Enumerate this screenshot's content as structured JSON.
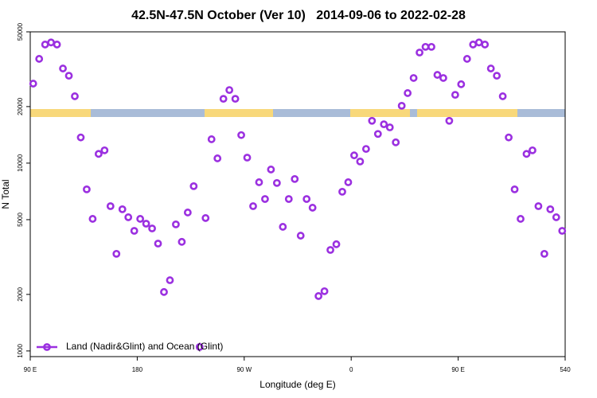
{
  "chart_data": {
    "type": "scatter",
    "title": "42.5N-47.5N October (Ver 10)   2014-09-06 to 2022-02-28",
    "x_label": "Longitude (deg E)",
    "y_label": "N Total",
    "x": [
      92.5,
      97.5,
      102.5,
      107.5,
      112.5,
      117.5,
      122.5,
      127.5,
      132.5,
      137.5,
      142.5,
      147.5,
      152.5,
      157.5,
      162.5,
      167.5,
      172.5,
      177.5,
      182.5,
      187.5,
      192.5,
      197.5,
      202.5,
      207.5,
      212.5,
      217.5,
      222.5,
      227.5,
      232.5,
      237.5,
      242.5,
      247.5,
      252.5,
      257.5,
      262.5,
      267.5,
      272.5,
      277.5,
      282.5,
      287.5,
      292.5,
      297.5,
      302.5,
      307.5,
      312.5,
      317.5,
      322.5,
      327.5,
      332.5,
      337.5,
      342.5,
      347.5,
      352.5,
      357.5,
      362.5,
      367.5,
      372.5,
      377.5,
      382.5,
      387.5,
      392.5,
      397.5,
      402.5,
      407.5,
      412.5,
      417.5,
      422.5,
      427.5,
      432.5,
      437.5,
      442.5,
      447.5,
      452.5,
      457.5,
      462.5,
      467.5,
      472.5,
      477.5,
      482.5,
      487.5,
      492.5,
      497.5,
      502.5,
      507.5,
      512.5,
      517.5,
      522.5,
      527.5,
      532.5,
      537.5
    ],
    "series": [
      {
        "name": "Land (Nadir&Glint) and Ocean (Glint)",
        "color": "#9b30e0",
        "values": [
          26500,
          35900,
          42800,
          43900,
          42800,
          31900,
          29200,
          22700,
          13700,
          7250,
          5050,
          11200,
          11700,
          5900,
          3290,
          5680,
          5150,
          4360,
          5050,
          4760,
          4490,
          3730,
          2060,
          2380,
          4720,
          3810,
          5460,
          7540,
          1050,
          5100,
          13400,
          10600,
          22000,
          24500,
          22000,
          14100,
          10700,
          5900,
          7910,
          6440,
          9250,
          7840,
          4580,
          6440,
          8230,
          4110,
          6440,
          5790,
          1960,
          2080,
          3450,
          3700,
          7040,
          7910,
          11000,
          10200,
          11900,
          16800,
          14300,
          16100,
          15500,
          12900,
          20200,
          23600,
          28400,
          38800,
          41600,
          41600,
          29500,
          28400,
          16800,
          23100,
          26300,
          35900,
          42800,
          43900,
          42800,
          31900,
          29200,
          22700,
          13700,
          7250,
          5050,
          11200,
          11700,
          5900,
          3290,
          5680,
          5150,
          4360
        ]
      }
    ],
    "xlim": [
      90,
      540
    ],
    "xticks": [
      {
        "value": 90,
        "label": "90 E"
      },
      180,
      {
        "value": 270,
        "label": "90 W"
      },
      {
        "value": 360,
        "label": "0"
      },
      {
        "value": 450,
        "label": "90 E"
      },
      540
    ],
    "ylim": [
      933,
      50000
    ],
    "yticks": [
      1000,
      2000,
      5000,
      10000,
      20000,
      50000
    ],
    "log_y": true,
    "grid": false,
    "legend": "bottom-left"
  }
}
